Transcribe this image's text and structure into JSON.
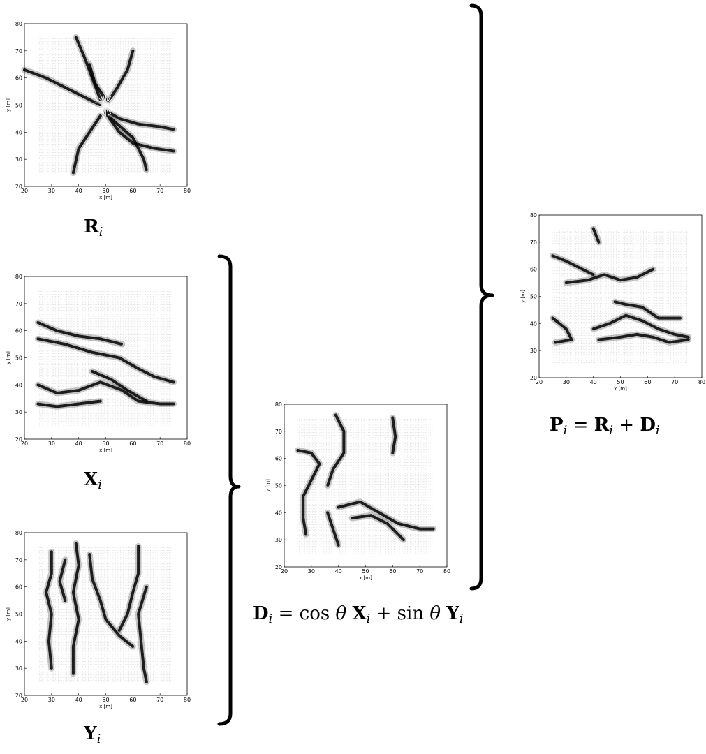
{
  "panels": [
    {
      "id": "R",
      "xlabel": "x [m]",
      "ylabel": "y [m]",
      "xticks": [
        "20",
        "30",
        "40",
        "50",
        "60",
        "70",
        "80"
      ],
      "yticks": [
        "20",
        "30",
        "40",
        "50",
        "60",
        "70",
        "80"
      ]
    },
    {
      "id": "X",
      "xlabel": "x [m]",
      "ylabel": "y [m]",
      "xticks": [
        "20",
        "30",
        "40",
        "50",
        "60",
        "70",
        "80"
      ],
      "yticks": [
        "20",
        "30",
        "40",
        "50",
        "60",
        "70",
        "80"
      ]
    },
    {
      "id": "Y",
      "xlabel": "x [m]",
      "ylabel": "y [m]",
      "xticks": [
        "20",
        "30",
        "40",
        "50",
        "60",
        "70",
        "80"
      ],
      "yticks": [
        "20",
        "30",
        "40",
        "50",
        "60",
        "70",
        "80"
      ]
    },
    {
      "id": "D",
      "xlabel": "x [m]",
      "ylabel": "y [m]",
      "xticks": [
        "20",
        "30",
        "40",
        "50",
        "60",
        "70",
        "80"
      ],
      "yticks": [
        "20",
        "30",
        "40",
        "50",
        "60",
        "70",
        "80"
      ]
    },
    {
      "id": "P",
      "xlabel": "x [m]",
      "ylabel": "y [m]",
      "xticks": [
        "20",
        "30",
        "40",
        "50",
        "60",
        "70",
        "80"
      ],
      "yticks": [
        "20",
        "30",
        "40",
        "50",
        "60",
        "70",
        "80"
      ]
    }
  ],
  "captions": {
    "R": {
      "sym": "R",
      "sub": "i"
    },
    "X": {
      "sym": "X",
      "sub": "i"
    },
    "Y": {
      "sym": "Y",
      "sub": "i"
    },
    "D": {
      "lhs": "D",
      "lhs_sub": "i",
      "eq": "=",
      "cos": "cos",
      "theta": "θ",
      "x": "X",
      "x_sub": "i",
      "plus": "+",
      "sin": "sin",
      "y": "Y",
      "y_sub": "i"
    },
    "P": {
      "lhs": "P",
      "lhs_sub": "i",
      "eq": "=",
      "r": "R",
      "r_sub": "i",
      "plus": "+",
      "d": "D",
      "d_sub": "i"
    }
  },
  "colors": {
    "field": "#000000",
    "grid": "#999999",
    "background": "#ffffff"
  }
}
